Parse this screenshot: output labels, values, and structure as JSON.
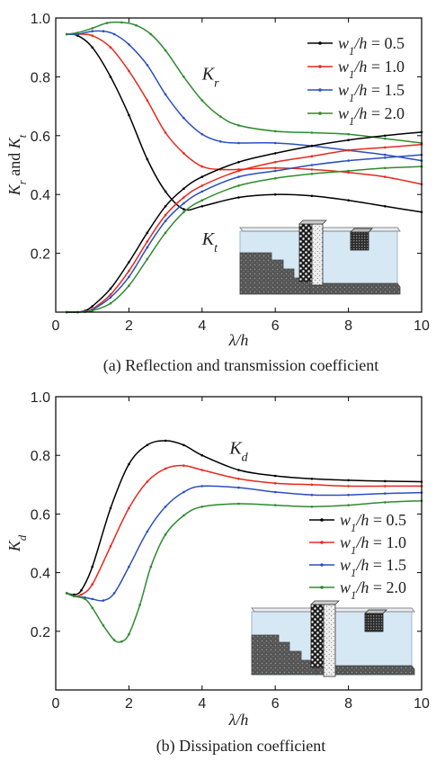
{
  "chart_data": [
    {
      "type": "line",
      "caption": "(a) Reflection and transmission coefficient",
      "xlabel": "λ/h",
      "ylabel": "Kr and Kt",
      "xlim": [
        0,
        10
      ],
      "ylim": [
        0,
        1.0
      ],
      "xticks": [
        "0",
        "2",
        "4",
        "6",
        "8",
        "10"
      ],
      "yticks": [
        "0.2",
        "0.4",
        "0.6",
        "0.8",
        "1.0"
      ],
      "legend_position": "top-right",
      "annotations": [
        {
          "text": "Kr",
          "x": 4.0,
          "y": 0.79
        },
        {
          "text": "Kt",
          "x": 4.0,
          "y": 0.23
        }
      ],
      "legend": [
        {
          "label": "w1/h = 0.5",
          "color": "#000000"
        },
        {
          "label": "w1/h = 1.0",
          "color": "#e8281e"
        },
        {
          "label": "w1/h = 1.5",
          "color": "#2a4fc0"
        },
        {
          "label": "w1/h = 2.0",
          "color": "#2e8b2e"
        }
      ],
      "series": [
        {
          "group": "Kr",
          "color": "#000000",
          "x": [
            0.3,
            0.6,
            1.0,
            1.5,
            2.0,
            2.5,
            3.0,
            3.5,
            4.0,
            5.0,
            6.0,
            7.0,
            8.0,
            9.0,
            10.0
          ],
          "y": [
            0.945,
            0.94,
            0.9,
            0.8,
            0.67,
            0.52,
            0.41,
            0.35,
            0.36,
            0.39,
            0.4,
            0.395,
            0.38,
            0.36,
            0.34
          ]
        },
        {
          "group": "Kr",
          "color": "#e8281e",
          "x": [
            0.3,
            0.6,
            1.0,
            1.5,
            2.0,
            2.5,
            3.0,
            3.5,
            4.0,
            4.5,
            5.0,
            6.0,
            7.0,
            8.0,
            9.0,
            10.0
          ],
          "y": [
            0.945,
            0.945,
            0.94,
            0.9,
            0.82,
            0.72,
            0.61,
            0.54,
            0.495,
            0.485,
            0.485,
            0.49,
            0.485,
            0.475,
            0.46,
            0.435
          ]
        },
        {
          "group": "Kr",
          "color": "#2a4fc0",
          "x": [
            0.3,
            0.6,
            1.0,
            1.3,
            1.6,
            2.0,
            2.5,
            3.0,
            3.5,
            4.0,
            4.5,
            5.0,
            6.0,
            7.0,
            8.0,
            9.0,
            10.0
          ],
          "y": [
            0.945,
            0.945,
            0.955,
            0.955,
            0.945,
            0.91,
            0.84,
            0.74,
            0.66,
            0.605,
            0.58,
            0.575,
            0.575,
            0.565,
            0.55,
            0.535,
            0.515
          ]
        },
        {
          "group": "Kr",
          "color": "#2e8b2e",
          "x": [
            0.3,
            0.6,
            1.0,
            1.4,
            1.8,
            2.2,
            2.6,
            3.0,
            3.5,
            4.0,
            4.5,
            5.0,
            6.0,
            7.0,
            8.0,
            9.0,
            10.0
          ],
          "y": [
            0.945,
            0.95,
            0.965,
            0.983,
            0.985,
            0.975,
            0.945,
            0.89,
            0.8,
            0.72,
            0.665,
            0.635,
            0.615,
            0.61,
            0.605,
            0.59,
            0.575
          ]
        },
        {
          "group": "Kt",
          "color": "#000000",
          "x": [
            0.3,
            0.6,
            0.8,
            1.0,
            1.5,
            2.0,
            2.5,
            3.0,
            3.5,
            4.0,
            5.0,
            6.0,
            7.0,
            8.0,
            9.0,
            10.0
          ],
          "y": [
            0.0,
            0.0,
            0.005,
            0.02,
            0.08,
            0.17,
            0.27,
            0.36,
            0.42,
            0.46,
            0.51,
            0.54,
            0.565,
            0.585,
            0.6,
            0.612
          ]
        },
        {
          "group": "Kt",
          "color": "#e8281e",
          "x": [
            0.3,
            0.6,
            0.8,
            1.0,
            1.5,
            2.0,
            2.5,
            3.0,
            3.5,
            4.0,
            5.0,
            6.0,
            7.0,
            8.0,
            9.0,
            10.0
          ],
          "y": [
            0.0,
            0.0,
            0.003,
            0.01,
            0.06,
            0.14,
            0.24,
            0.33,
            0.39,
            0.43,
            0.48,
            0.51,
            0.53,
            0.55,
            0.56,
            0.57
          ]
        },
        {
          "group": "Kt",
          "color": "#2a4fc0",
          "x": [
            0.3,
            0.6,
            0.8,
            1.0,
            1.5,
            2.0,
            2.5,
            3.0,
            3.5,
            4.0,
            5.0,
            6.0,
            7.0,
            8.0,
            9.0,
            10.0
          ],
          "y": [
            0.0,
            0.0,
            0.002,
            0.008,
            0.05,
            0.12,
            0.22,
            0.31,
            0.37,
            0.41,
            0.46,
            0.48,
            0.5,
            0.515,
            0.525,
            0.535
          ]
        },
        {
          "group": "Kt",
          "color": "#2e8b2e",
          "x": [
            0.3,
            0.6,
            0.8,
            1.0,
            1.5,
            2.0,
            2.5,
            3.0,
            3.5,
            4.0,
            5.0,
            6.0,
            7.0,
            8.0,
            9.0,
            10.0
          ],
          "y": [
            0.0,
            0.0,
            0.001,
            0.005,
            0.03,
            0.09,
            0.18,
            0.27,
            0.34,
            0.38,
            0.43,
            0.455,
            0.47,
            0.48,
            0.49,
            0.495
          ]
        }
      ]
    },
    {
      "type": "line",
      "caption": "(b) Dissipation coefficient",
      "xlabel": "λ/h",
      "ylabel": "Kd",
      "xlim": [
        0,
        10
      ],
      "ylim": [
        0,
        1.0
      ],
      "xticks": [
        "0",
        "2",
        "4",
        "6",
        "8",
        "10"
      ],
      "yticks": [
        "0.2",
        "0.4",
        "0.6",
        "0.8",
        "1.0"
      ],
      "legend_position": "center-right",
      "annotations": [
        {
          "text": "Kd",
          "x": 4.75,
          "y": 0.805
        }
      ],
      "legend": [
        {
          "label": "w1/h = 0.5",
          "color": "#000000"
        },
        {
          "label": "w1/h = 1.0",
          "color": "#e8281e"
        },
        {
          "label": "w1/h = 1.5",
          "color": "#2a4fc0"
        },
        {
          "label": "w1/h = 2.0",
          "color": "#2e8b2e"
        }
      ],
      "series": [
        {
          "color": "#000000",
          "x": [
            0.3,
            0.5,
            0.7,
            1.0,
            1.5,
            2.0,
            2.5,
            3.0,
            3.5,
            4.0,
            5.0,
            6.0,
            7.0,
            8.0,
            9.0,
            10.0
          ],
          "y": [
            0.33,
            0.325,
            0.34,
            0.42,
            0.62,
            0.77,
            0.835,
            0.85,
            0.835,
            0.8,
            0.75,
            0.73,
            0.72,
            0.715,
            0.712,
            0.71
          ]
        },
        {
          "color": "#e8281e",
          "x": [
            0.3,
            0.5,
            0.7,
            1.0,
            1.5,
            2.0,
            2.5,
            3.0,
            3.5,
            4.0,
            5.0,
            6.0,
            7.0,
            8.0,
            9.0,
            10.0
          ],
          "y": [
            0.33,
            0.32,
            0.325,
            0.36,
            0.49,
            0.62,
            0.71,
            0.755,
            0.765,
            0.75,
            0.72,
            0.705,
            0.7,
            0.695,
            0.695,
            0.695
          ]
        },
        {
          "color": "#2a4fc0",
          "x": [
            0.3,
            0.5,
            0.8,
            1.0,
            1.3,
            1.6,
            2.0,
            2.5,
            3.0,
            3.5,
            4.0,
            5.0,
            6.0,
            7.0,
            8.0,
            9.0,
            10.0
          ],
          "y": [
            0.33,
            0.32,
            0.315,
            0.31,
            0.305,
            0.33,
            0.42,
            0.54,
            0.625,
            0.675,
            0.695,
            0.69,
            0.675,
            0.665,
            0.665,
            0.67,
            0.673
          ]
        },
        {
          "color": "#2e8b2e",
          "x": [
            0.3,
            0.5,
            0.8,
            1.0,
            1.3,
            1.6,
            1.8,
            2.0,
            2.3,
            2.6,
            3.0,
            3.5,
            4.0,
            5.0,
            6.0,
            7.0,
            8.0,
            9.0,
            10.0
          ],
          "y": [
            0.33,
            0.32,
            0.31,
            0.28,
            0.22,
            0.17,
            0.165,
            0.19,
            0.29,
            0.42,
            0.53,
            0.595,
            0.625,
            0.635,
            0.63,
            0.625,
            0.63,
            0.64,
            0.645
          ]
        }
      ]
    }
  ]
}
